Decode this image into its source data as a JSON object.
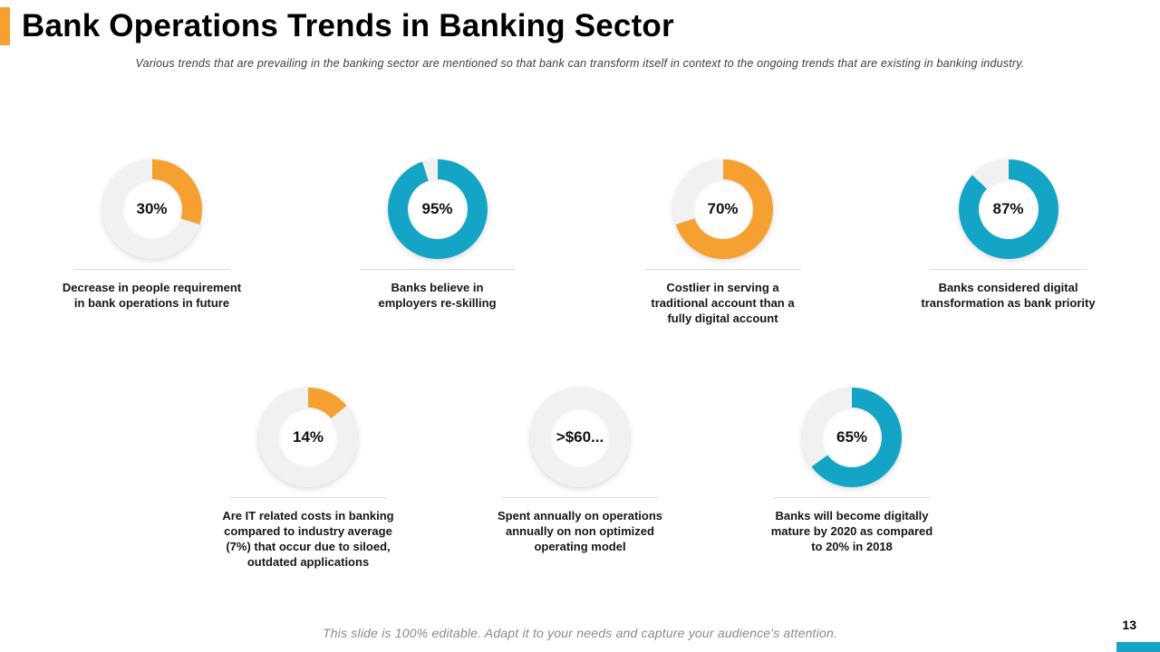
{
  "slide": {
    "title": "Bank Operations Trends in Banking Sector",
    "subtitle": "Various trends that are prevailing in the banking sector are mentioned so that bank can transform itself in context to the ongoing trends that are existing in banking industry.",
    "footer": "This slide is 100% editable.  Adapt it to your needs and capture your audience's attention.",
    "page_number": "13"
  },
  "colors": {
    "orange": "#F5A031",
    "teal": "#14A5C6",
    "track": "#F1F1F1"
  },
  "chart_data": {
    "type": "donut_set",
    "items": [
      {
        "type": "donut",
        "row": 1,
        "value": 30,
        "label": "30%",
        "color": "orange",
        "caption_lines": [
          "Decrease in people requirement",
          "in bank operations in future"
        ]
      },
      {
        "type": "donut",
        "row": 1,
        "value": 95,
        "label": "95%",
        "color": "teal",
        "caption_lines": [
          "Banks believe in",
          "employers re-skilling"
        ]
      },
      {
        "type": "donut",
        "row": 1,
        "value": 70,
        "label": "70%",
        "color": "orange",
        "caption_lines": [
          "Costlier in serving a",
          "traditional account than a",
          "fully digital account"
        ]
      },
      {
        "type": "donut",
        "row": 1,
        "value": 87,
        "label": "87%",
        "color": "teal",
        "caption_lines": [
          "Banks considered digital",
          "transformation as bank priority"
        ]
      },
      {
        "type": "donut",
        "row": 2,
        "value": 14,
        "label": "14%",
        "color": "orange",
        "caption_lines": [
          "Are IT related costs in banking",
          "compared to  industry average",
          "(7%) that occur due to siloed,",
          "outdated applications"
        ]
      },
      {
        "type": "donut",
        "row": 2,
        "value": 0,
        "label": ">$60...",
        "color": null,
        "caption_lines": [
          "Spent annually on operations",
          "annually on non optimized",
          "operating model"
        ]
      },
      {
        "type": "donut",
        "row": 2,
        "value": 65,
        "label": "65%",
        "color": "teal",
        "caption_lines": [
          "Banks will become digitally",
          "mature by 2020 as compared",
          "to 20% in 2018"
        ]
      }
    ]
  }
}
